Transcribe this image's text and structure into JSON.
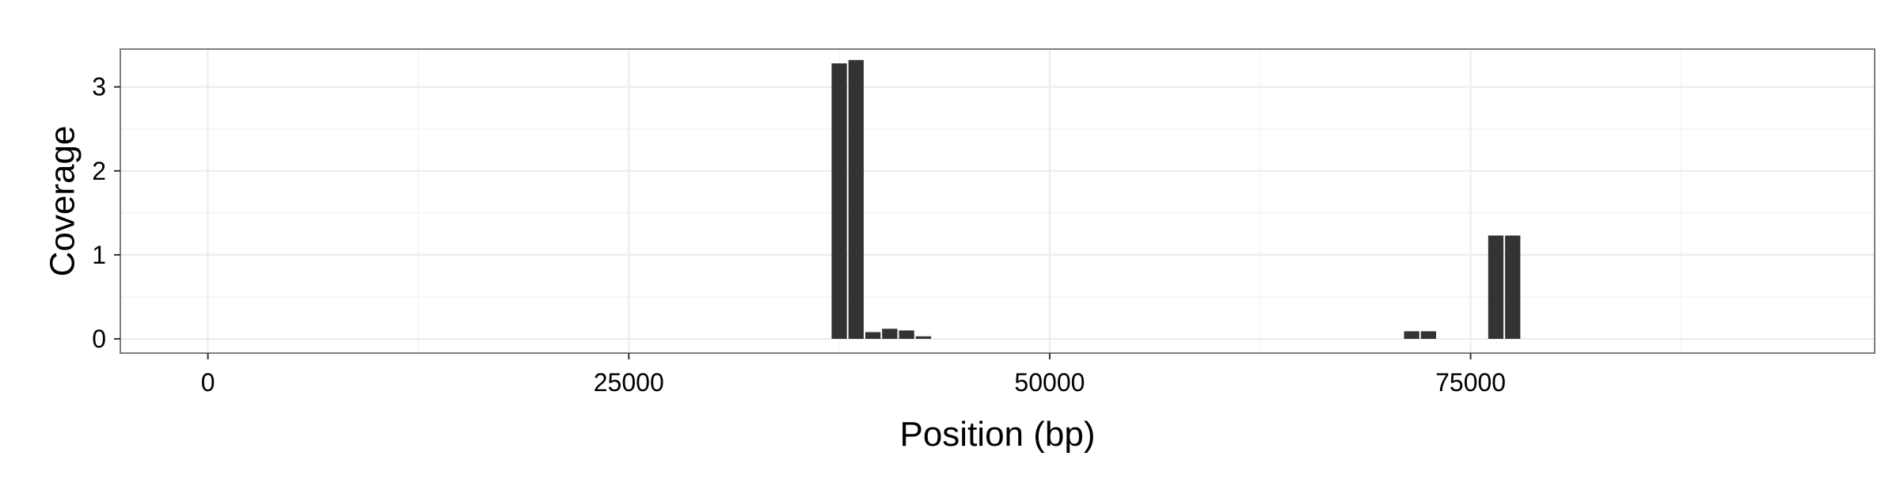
{
  "chart_data": {
    "type": "bar",
    "title": "",
    "xlabel": "Position (bp)",
    "ylabel": "Coverage",
    "xlim": [
      -5200,
      99000
    ],
    "ylim": [
      -0.17,
      3.45
    ],
    "xticks": [
      0,
      25000,
      50000,
      75000
    ],
    "xtick_labels": [
      "0",
      "25000",
      "50000",
      "75000"
    ],
    "yticks": [
      0,
      1,
      2,
      3
    ],
    "ytick_labels": [
      "0",
      "1",
      "2",
      "3"
    ],
    "bin_width": 1000,
    "grid": true,
    "x": [
      37000,
      38000,
      39000,
      40000,
      41000,
      42000,
      71000,
      72000,
      76000,
      77000
    ],
    "values": [
      3.28,
      3.32,
      0.08,
      0.12,
      0.1,
      0.03,
      0.09,
      0.09,
      1.23,
      1.23
    ],
    "colors": {
      "bar": "#333333",
      "panel_background": "#ffffff",
      "panel_border": "#7f7f7f",
      "grid_major": "#ebebeb",
      "grid_minor": "#f5f5f5"
    }
  }
}
